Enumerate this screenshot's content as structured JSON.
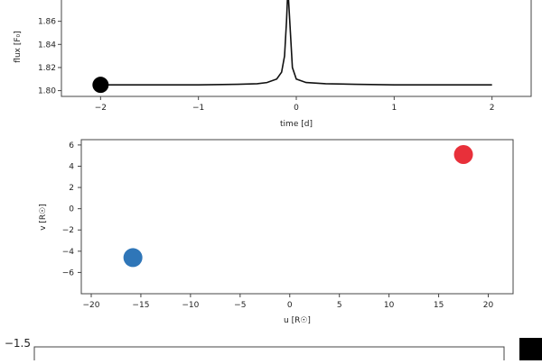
{
  "chart_data": [
    {
      "type": "line",
      "xlabel": "time [d]",
      "ylabel": "flux [F₀]",
      "xlim": [
        -2.4,
        2.4
      ],
      "ylim": [
        1.795,
        1.88
      ],
      "xticks": [
        "−2",
        "−1",
        "0",
        "1",
        "2"
      ],
      "yticks": [
        "1.80",
        "1.82",
        "1.84",
        "1.86"
      ],
      "series": [
        {
          "color": "#111111",
          "x": [
            -2.0,
            -1.5,
            -1.0,
            -0.6,
            -0.4,
            -0.3,
            -0.2,
            -0.15,
            -0.12,
            -0.1,
            -0.09,
            -0.08,
            -0.06,
            -0.04,
            0.0,
            0.1,
            0.3,
            0.6,
            1.0,
            1.5,
            2.0
          ],
          "y": [
            1.805,
            1.805,
            1.805,
            1.8055,
            1.806,
            1.807,
            1.81,
            1.816,
            1.83,
            1.86,
            1.88,
            1.88,
            1.85,
            1.82,
            1.81,
            1.807,
            1.806,
            1.8055,
            1.805,
            1.805,
            1.805
          ]
        }
      ],
      "markers": [
        {
          "x": -2.0,
          "y": 1.805,
          "color": "#000000"
        }
      ]
    },
    {
      "type": "scatter",
      "xlabel": "u [R☉]",
      "ylabel": "v [R☉]",
      "xlim": [
        -21,
        22.5
      ],
      "ylim": [
        -8,
        6.5
      ],
      "xticks": [
        "−20",
        "−15",
        "−10",
        "−5",
        "0",
        "5",
        "10",
        "15",
        "20"
      ],
      "yticks": [
        "−6",
        "−4",
        "−2",
        "0",
        "2",
        "4",
        "6"
      ],
      "points": [
        {
          "x": 17.5,
          "y": 5.1,
          "color": "#e8303a"
        },
        {
          "x": -15.8,
          "y": -4.6,
          "color": "#2f76b8"
        }
      ]
    },
    {
      "type": "line",
      "yticks": [
        "−1.5"
      ]
    }
  ]
}
